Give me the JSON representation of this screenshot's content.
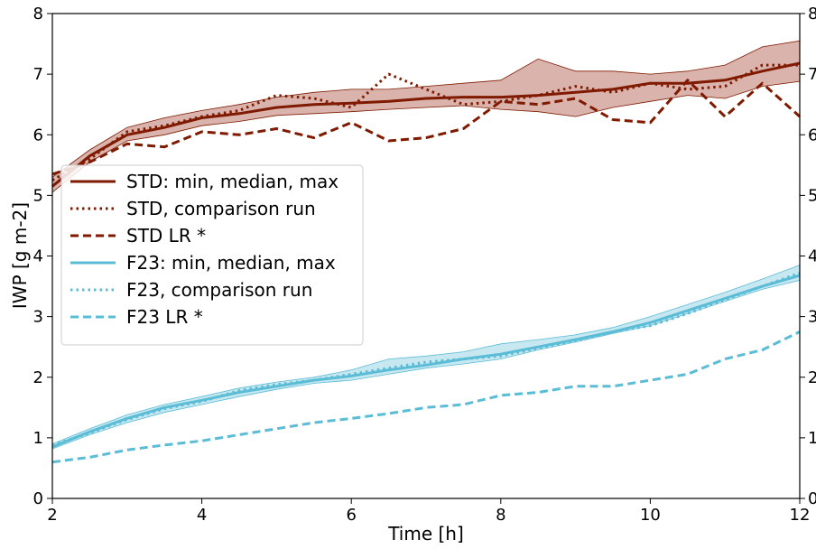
{
  "chart_data": {
    "type": "line",
    "xlabel": "Time [h]",
    "ylabel": "IWP [g m-2]",
    "xlim": [
      2,
      12
    ],
    "ylim": [
      0,
      8
    ],
    "x_ticks": [
      "2",
      "4",
      "6",
      "8",
      "10",
      "12"
    ],
    "y_ticks": [
      "0",
      "1",
      "2",
      "3",
      "4",
      "5",
      "6",
      "7",
      "8"
    ],
    "legend_position": "center-left",
    "grid": false,
    "colors": {
      "std": "#7f1a00",
      "std_band": "#c48a80",
      "f23": "#5bbcd6",
      "f23_band": "#a9dcea"
    },
    "series": [
      {
        "name": "STD: min, median, max",
        "style": "solid",
        "color_key": "std",
        "x": [
          2,
          2.5,
          3,
          3.5,
          4,
          4.5,
          5,
          5.5,
          6,
          6.5,
          7,
          7.5,
          8,
          8.5,
          9,
          9.5,
          10,
          10.5,
          11,
          11.5,
          12
        ],
        "values": [
          5.15,
          5.65,
          6.0,
          6.12,
          6.28,
          6.35,
          6.45,
          6.5,
          6.52,
          6.55,
          6.6,
          6.62,
          6.62,
          6.65,
          6.7,
          6.75,
          6.85,
          6.85,
          6.9,
          7.05,
          7.18
        ],
        "min": [
          5.05,
          5.55,
          5.9,
          6.0,
          6.15,
          6.22,
          6.32,
          6.35,
          6.38,
          6.42,
          6.45,
          6.48,
          6.42,
          6.38,
          6.3,
          6.45,
          6.55,
          6.65,
          6.6,
          6.8,
          6.88
        ],
        "max": [
          5.3,
          5.75,
          6.12,
          6.28,
          6.4,
          6.5,
          6.62,
          6.7,
          6.75,
          6.75,
          6.8,
          6.85,
          6.9,
          7.25,
          7.05,
          7.05,
          7.0,
          7.05,
          7.15,
          7.45,
          7.55
        ]
      },
      {
        "name": "STD, comparison run",
        "style": "dotted",
        "color_key": "std",
        "x": [
          2,
          2.5,
          3,
          3.5,
          4,
          4.5,
          5,
          5.5,
          6,
          6.5,
          7,
          7.5,
          8,
          8.5,
          9,
          9.5,
          10,
          10.5,
          11,
          11.5,
          12
        ],
        "values": [
          5.25,
          5.6,
          6.05,
          6.15,
          6.3,
          6.4,
          6.65,
          6.6,
          6.45,
          7.0,
          6.75,
          6.5,
          6.55,
          6.65,
          6.8,
          6.7,
          6.85,
          6.75,
          6.8,
          7.15,
          7.15
        ]
      },
      {
        "name": "STD LR *",
        "style": "dashed",
        "color_key": "std",
        "x": [
          2,
          2.5,
          3,
          3.5,
          4,
          4.5,
          5,
          5.5,
          6,
          6.5,
          7,
          7.5,
          8,
          8.5,
          9,
          9.5,
          10,
          10.5,
          11,
          11.5,
          12
        ],
        "values": [
          5.35,
          5.55,
          5.85,
          5.8,
          6.05,
          6.0,
          6.1,
          5.95,
          6.2,
          5.9,
          5.95,
          6.1,
          6.55,
          6.5,
          6.6,
          6.25,
          6.2,
          6.9,
          6.3,
          6.85,
          6.3
        ]
      },
      {
        "name": "F23: min, median, max",
        "style": "solid",
        "color_key": "f23",
        "x": [
          2,
          2.5,
          3,
          3.5,
          4,
          4.5,
          5,
          5.5,
          6,
          6.5,
          7,
          7.5,
          8,
          8.5,
          9,
          9.5,
          10,
          10.5,
          11,
          11.5,
          12
        ],
        "values": [
          0.85,
          1.1,
          1.32,
          1.5,
          1.62,
          1.75,
          1.85,
          1.95,
          2.02,
          2.12,
          2.2,
          2.3,
          2.38,
          2.5,
          2.62,
          2.75,
          2.9,
          3.1,
          3.3,
          3.5,
          3.68
        ],
        "min": [
          0.82,
          1.05,
          1.25,
          1.42,
          1.55,
          1.68,
          1.8,
          1.9,
          1.95,
          2.05,
          2.15,
          2.22,
          2.3,
          2.45,
          2.58,
          2.72,
          2.85,
          3.05,
          3.25,
          3.45,
          3.6
        ],
        "max": [
          0.9,
          1.15,
          1.38,
          1.55,
          1.68,
          1.82,
          1.92,
          2.0,
          2.12,
          2.3,
          2.35,
          2.42,
          2.55,
          2.62,
          2.7,
          2.82,
          3.0,
          3.2,
          3.4,
          3.62,
          3.85
        ]
      },
      {
        "name": "F23, comparison run",
        "style": "dotted",
        "color_key": "f23",
        "x": [
          2,
          2.5,
          3,
          3.5,
          4,
          4.5,
          5,
          5.5,
          6,
          6.5,
          7,
          7.5,
          8,
          8.5,
          9,
          9.5,
          10,
          10.5,
          11,
          11.5,
          12
        ],
        "values": [
          0.88,
          1.08,
          1.3,
          1.48,
          1.6,
          1.78,
          1.88,
          1.95,
          2.05,
          2.15,
          2.25,
          2.3,
          2.35,
          2.48,
          2.6,
          2.75,
          2.85,
          3.05,
          3.28,
          3.5,
          3.72
        ]
      },
      {
        "name": "F23 LR *",
        "style": "dashed",
        "color_key": "f23",
        "x": [
          2,
          2.5,
          3,
          3.5,
          4,
          4.5,
          5,
          5.5,
          6,
          6.5,
          7,
          7.5,
          8,
          8.5,
          9,
          9.5,
          10,
          10.5,
          11,
          11.5,
          12
        ],
        "values": [
          0.6,
          0.68,
          0.8,
          0.88,
          0.95,
          1.05,
          1.15,
          1.25,
          1.32,
          1.4,
          1.5,
          1.55,
          1.7,
          1.75,
          1.85,
          1.85,
          1.95,
          2.05,
          2.3,
          2.45,
          2.75
        ]
      }
    ]
  }
}
